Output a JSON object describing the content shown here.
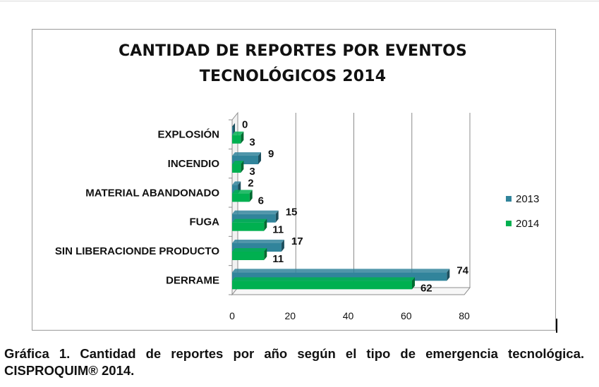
{
  "chart_data": {
    "type": "bar",
    "orientation": "horizontal",
    "title_lines": [
      "CANTIDAD DE REPORTES POR EVENTOS",
      "TECNOLÓGICOS 2014"
    ],
    "categories": [
      "EXPLOSIÓN",
      "INCENDIO",
      "MATERIAL ABANDONADO",
      "FUGA",
      "SIN LIBERACIONDE PRODUCTO",
      "DERRAME"
    ],
    "series": [
      {
        "name": "2013",
        "values": [
          0,
          9,
          2,
          15,
          17,
          74
        ],
        "color": "#31849b"
      },
      {
        "name": "2014",
        "values": [
          3,
          3,
          6,
          11,
          11,
          62
        ],
        "color": "#00b050"
      }
    ],
    "xlim": [
      0,
      80
    ],
    "xticks": [
      "0",
      "20",
      "40",
      "60",
      "80"
    ],
    "grid": true,
    "legend_position": "right",
    "style": "3d"
  },
  "caption": "Gráfica 1. Cantidad de reportes por año según el tipo de emergencia tecnológica. CISPROQUIM® 2014."
}
